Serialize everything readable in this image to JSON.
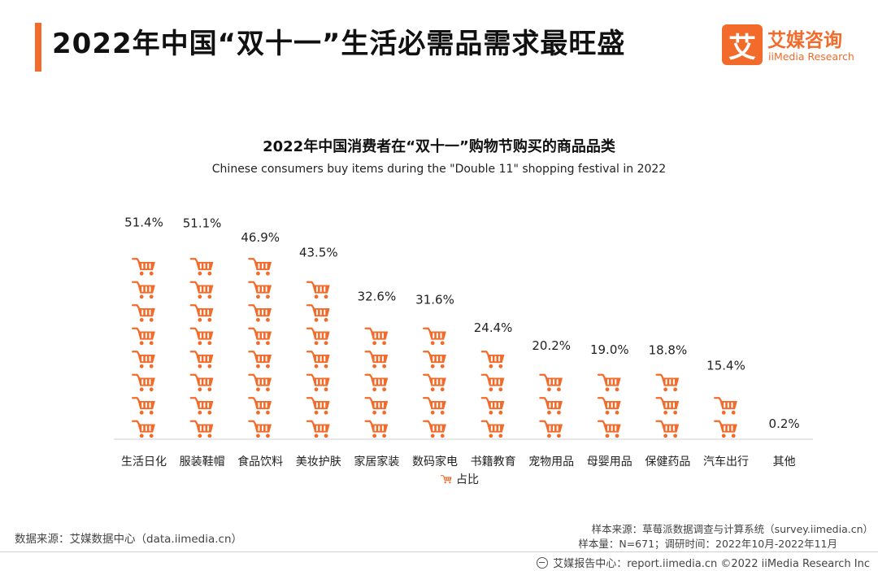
{
  "header": {
    "title": "2022年中国“双十一”生活必需品需求最旺盛",
    "logo_mark": "艾",
    "logo_cn": "艾媒咨询",
    "logo_en": "iiMedia Research"
  },
  "chart_data": {
    "type": "bar",
    "title": "2022年中国消费者在“双十一”购物节购买的商品品类",
    "subtitle": "Chinese consumers buy items during the \"Double 11\" shopping festival in 2022",
    "categories": [
      "生活日化",
      "服装鞋帽",
      "食品饮料",
      "美妆护肤",
      "家居家装",
      "数码家电",
      "书籍教育",
      "宠物用品",
      "母婴用品",
      "保健药品",
      "汽车出行",
      "其他"
    ],
    "series": [
      {
        "name": "占比",
        "values": [
          51.4,
          51.1,
          46.9,
          43.5,
          32.6,
          31.6,
          24.4,
          20.2,
          19.0,
          18.8,
          15.4,
          0.2
        ],
        "labels": [
          "51.4%",
          "51.1%",
          "46.9%",
          "43.5%",
          "32.6%",
          "31.6%",
          "24.4%",
          "20.2%",
          "19.0%",
          "18.8%",
          "15.4%",
          "0.2%"
        ]
      }
    ],
    "unit_per_icon": 5.8,
    "icon": "shopping-cart-icon",
    "legend_position": "bottom-center",
    "color": "#f26b2a",
    "grid": false
  },
  "sources": {
    "left": "数据来源：艾媒数据中心（data.iimedia.cn）",
    "sample_source": "样本来源：草莓派数据调查与计算系统（survey.iimedia.cn）",
    "sample_size": "样本量：N=671；调研时间：2022年10月-2022年11月"
  },
  "footer": {
    "text": "艾媒报告中心：report.iimedia.cn  ©2022  iiMedia Research  Inc"
  }
}
